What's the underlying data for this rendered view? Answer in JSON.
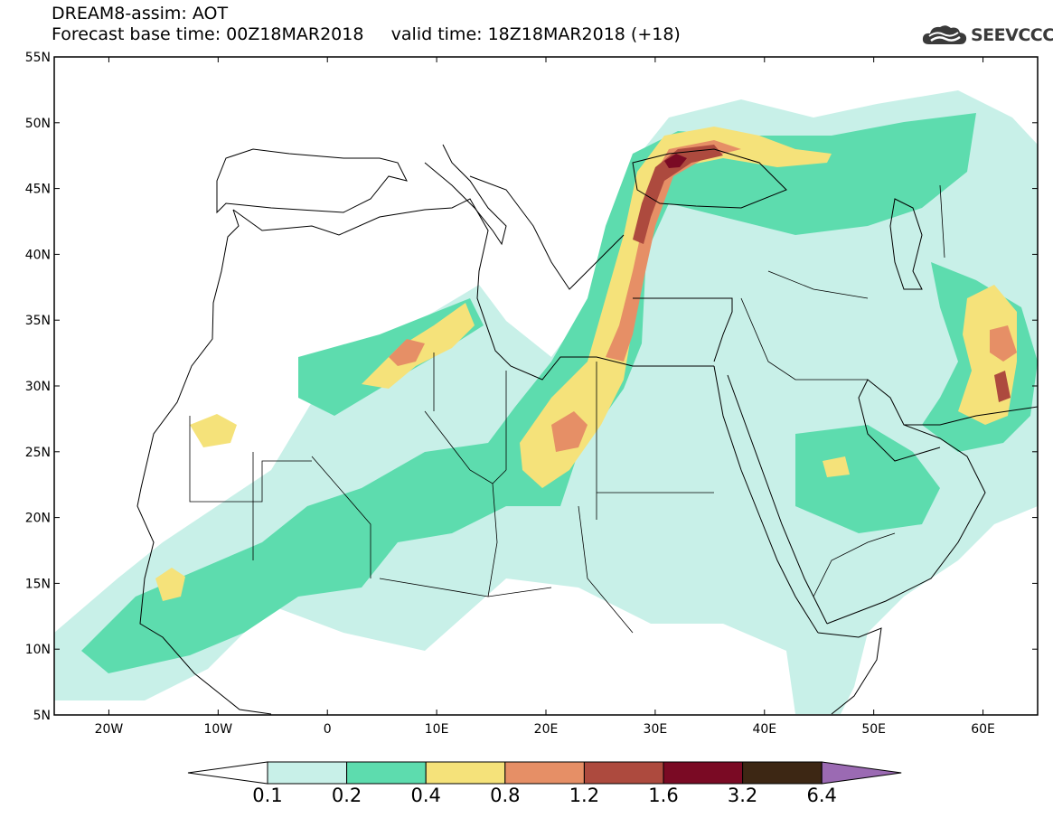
{
  "title": {
    "line1": "DREAM8-assim: AOT",
    "base_label": "Forecast base time: 00Z18MAR2018",
    "valid_label": "valid time: 18Z18MAR2018 (+18)"
  },
  "logo": {
    "text": "SEEVCCC",
    "icon": "cloud-icon"
  },
  "map": {
    "type": "filled-contour-map",
    "variable": "AOT",
    "lon_range": [
      -25,
      65
    ],
    "lat_range": [
      5,
      55
    ],
    "lon_ticks": [
      {
        "value": -20,
        "label": "20W"
      },
      {
        "value": -10,
        "label": "10W"
      },
      {
        "value": 0,
        "label": "0"
      },
      {
        "value": 10,
        "label": "10E"
      },
      {
        "value": 20,
        "label": "20E"
      },
      {
        "value": 30,
        "label": "30E"
      },
      {
        "value": 40,
        "label": "40E"
      },
      {
        "value": 50,
        "label": "50E"
      },
      {
        "value": 60,
        "label": "60E"
      }
    ],
    "lat_ticks": [
      {
        "value": 5,
        "label": "5N"
      },
      {
        "value": 10,
        "label": "10N"
      },
      {
        "value": 15,
        "label": "15N"
      },
      {
        "value": 20,
        "label": "20N"
      },
      {
        "value": 25,
        "label": "25N"
      },
      {
        "value": 30,
        "label": "30N"
      },
      {
        "value": 35,
        "label": "35N"
      },
      {
        "value": 40,
        "label": "40N"
      },
      {
        "value": 45,
        "label": "45N"
      },
      {
        "value": 50,
        "label": "50N"
      },
      {
        "value": 55,
        "label": "55N"
      }
    ]
  },
  "colorbar": {
    "levels": [
      "0.1",
      "0.2",
      "0.4",
      "0.8",
      "1.2",
      "1.6",
      "3.2",
      "6.4"
    ],
    "colors": [
      "#ffffff",
      "#c8f0e8",
      "#5ddcae",
      "#f5e27a",
      "#e68f66",
      "#ad4a3e",
      "#7a0a24",
      "#3d2714",
      "#9b6ab3"
    ]
  },
  "dust_colors": {
    "c1": "#c8f0e8",
    "c2": "#5ddcae",
    "c3": "#f5e27a",
    "c4": "#e68f66",
    "c5": "#ad4a3e",
    "c6": "#7a0a24"
  }
}
